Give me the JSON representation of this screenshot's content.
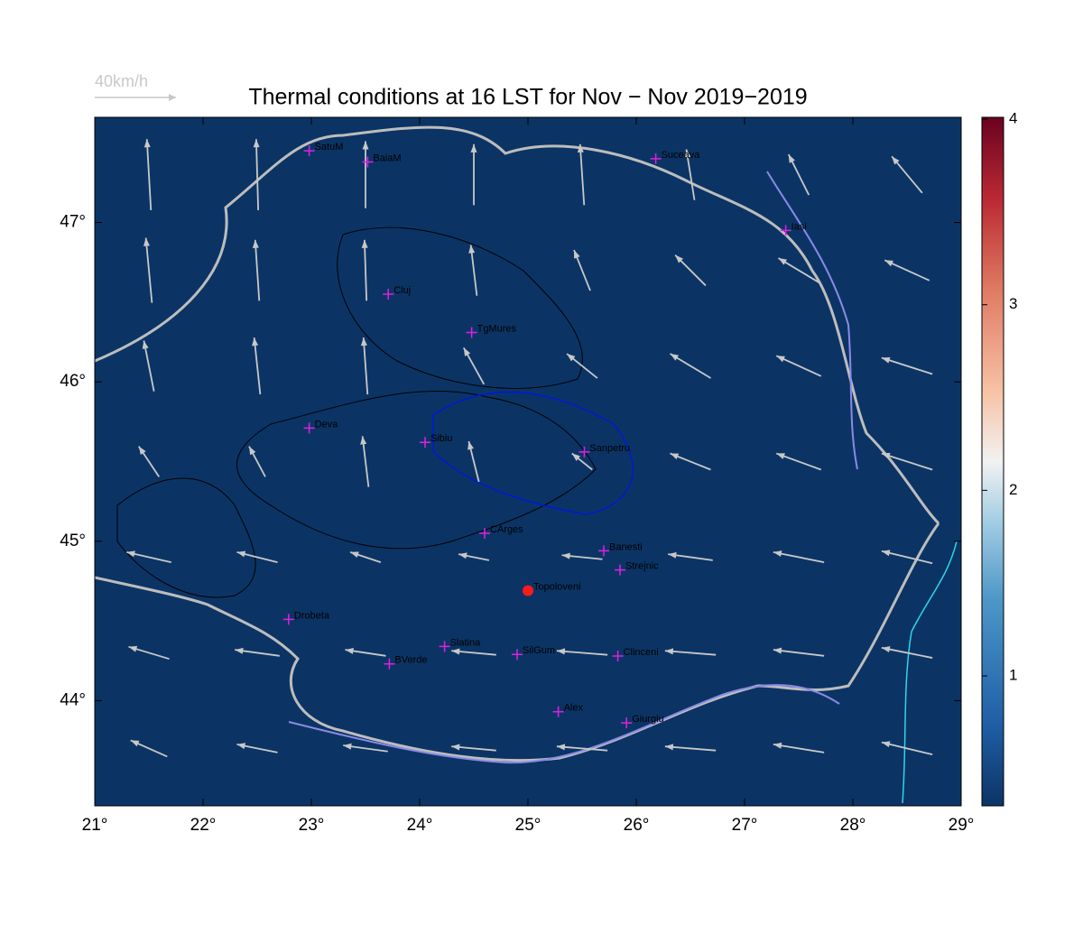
{
  "chart_data": {
    "type": "quiver-map",
    "title": "Thermal conditions at 16 LST for Nov − Nov  2019−2019",
    "background_color": "#0b3465",
    "arrow_color": "#c8c8c8",
    "reference": {
      "value": 40,
      "label": "40km/h"
    },
    "xlim": [
      21,
      29
    ],
    "ylim": [
      43.34,
      47.66
    ],
    "xticks": [
      {
        "value": 21,
        "label": "21°"
      },
      {
        "value": 22,
        "label": "22°"
      },
      {
        "value": 23,
        "label": "23°"
      },
      {
        "value": 24,
        "label": "24°"
      },
      {
        "value": 25,
        "label": "25°"
      },
      {
        "value": 26,
        "label": "26°"
      },
      {
        "value": 27,
        "label": "27°"
      },
      {
        "value": 28,
        "label": "28°"
      },
      {
        "value": 29,
        "label": "29°"
      }
    ],
    "yticks": [
      {
        "value": 44,
        "label": "44°"
      },
      {
        "value": 45,
        "label": "45°"
      },
      {
        "value": 46,
        "label": "46°"
      },
      {
        "value": 47,
        "label": "47°"
      }
    ],
    "clim": [
      0.3,
      4.01
    ],
    "cticks": [
      1,
      2,
      3,
      4
    ],
    "cities": [
      {
        "name": "SatuM",
        "lon": 22.98,
        "lat": 47.45,
        "marker": "cross"
      },
      {
        "name": "BaiaM",
        "lon": 23.52,
        "lat": 47.38,
        "marker": "cross"
      },
      {
        "name": "Suceava",
        "lon": 26.18,
        "lat": 47.4,
        "marker": "cross"
      },
      {
        "name": "Iasi",
        "lon": 27.38,
        "lat": 46.95,
        "marker": "cross"
      },
      {
        "name": "Cluj",
        "lon": 23.71,
        "lat": 46.55,
        "marker": "cross"
      },
      {
        "name": "TgMures",
        "lon": 24.48,
        "lat": 46.31,
        "marker": "cross"
      },
      {
        "name": "Deva",
        "lon": 22.98,
        "lat": 45.71,
        "marker": "cross"
      },
      {
        "name": "Sibiu",
        "lon": 24.05,
        "lat": 45.62,
        "marker": "cross"
      },
      {
        "name": "Sanpetru",
        "lon": 25.52,
        "lat": 45.56,
        "marker": "cross"
      },
      {
        "name": "CArges",
        "lon": 24.6,
        "lat": 45.05,
        "marker": "cross"
      },
      {
        "name": "Banesti",
        "lon": 25.7,
        "lat": 44.94,
        "marker": "cross"
      },
      {
        "name": "Strejnic",
        "lon": 25.85,
        "lat": 44.82,
        "marker": "cross"
      },
      {
        "name": "Topoloveni",
        "lon": 25.0,
        "lat": 44.69,
        "marker": "dot"
      },
      {
        "name": "Drobeta",
        "lon": 22.79,
        "lat": 44.51,
        "marker": "cross"
      },
      {
        "name": "Slatina",
        "lon": 24.23,
        "lat": 44.34,
        "marker": "cross"
      },
      {
        "name": "SilGum",
        "lon": 24.9,
        "lat": 44.29,
        "marker": "cross"
      },
      {
        "name": "Clinceni",
        "lon": 25.83,
        "lat": 44.28,
        "marker": "cross"
      },
      {
        "name": "BVerde",
        "lon": 23.72,
        "lat": 44.23,
        "marker": "cross"
      },
      {
        "name": "Alex",
        "lon": 25.28,
        "lat": 43.93,
        "marker": "cross"
      },
      {
        "name": "Giurgiu",
        "lon": 25.91,
        "lat": 43.86,
        "marker": "cross"
      }
    ],
    "wind": {
      "lons": [
        21.5,
        22.5,
        23.5,
        24.5,
        25.5,
        26.5,
        27.5,
        28.5
      ],
      "lats": [
        47.3,
        46.7,
        46.1,
        45.5,
        44.9,
        44.3,
        43.7
      ],
      "u": [
        [
          -2,
          -1,
          0,
          0,
          -2,
          -4,
          -10,
          -15
        ],
        [
          -3,
          -2,
          -1,
          -3,
          -8,
          -15,
          -20,
          -22
        ],
        [
          -5,
          -3,
          -2,
          -10,
          -15,
          -20,
          -22,
          -25
        ],
        [
          -10,
          -8,
          -3,
          -5,
          -10,
          -20,
          -22,
          -25
        ],
        [
          -22,
          -20,
          -15,
          -15,
          -20,
          -22,
          -25,
          -25
        ],
        [
          -20,
          -22,
          -20,
          -22,
          -25,
          -25,
          -25,
          -25
        ],
        [
          -18,
          -20,
          -22,
          -22,
          -25,
          -25,
          -25,
          -25
        ]
      ],
      "v": [
        [
          35,
          35,
          33,
          30,
          30,
          25,
          20,
          18
        ],
        [
          32,
          30,
          30,
          25,
          20,
          15,
          12,
          10
        ],
        [
          25,
          28,
          28,
          18,
          12,
          12,
          10,
          8
        ],
        [
          15,
          15,
          25,
          20,
          8,
          8,
          8,
          8
        ],
        [
          5,
          5,
          5,
          3,
          2,
          3,
          5,
          6
        ],
        [
          6,
          3,
          3,
          2,
          2,
          2,
          3,
          5
        ],
        [
          8,
          4,
          3,
          2,
          2,
          2,
          4,
          6
        ]
      ]
    }
  }
}
